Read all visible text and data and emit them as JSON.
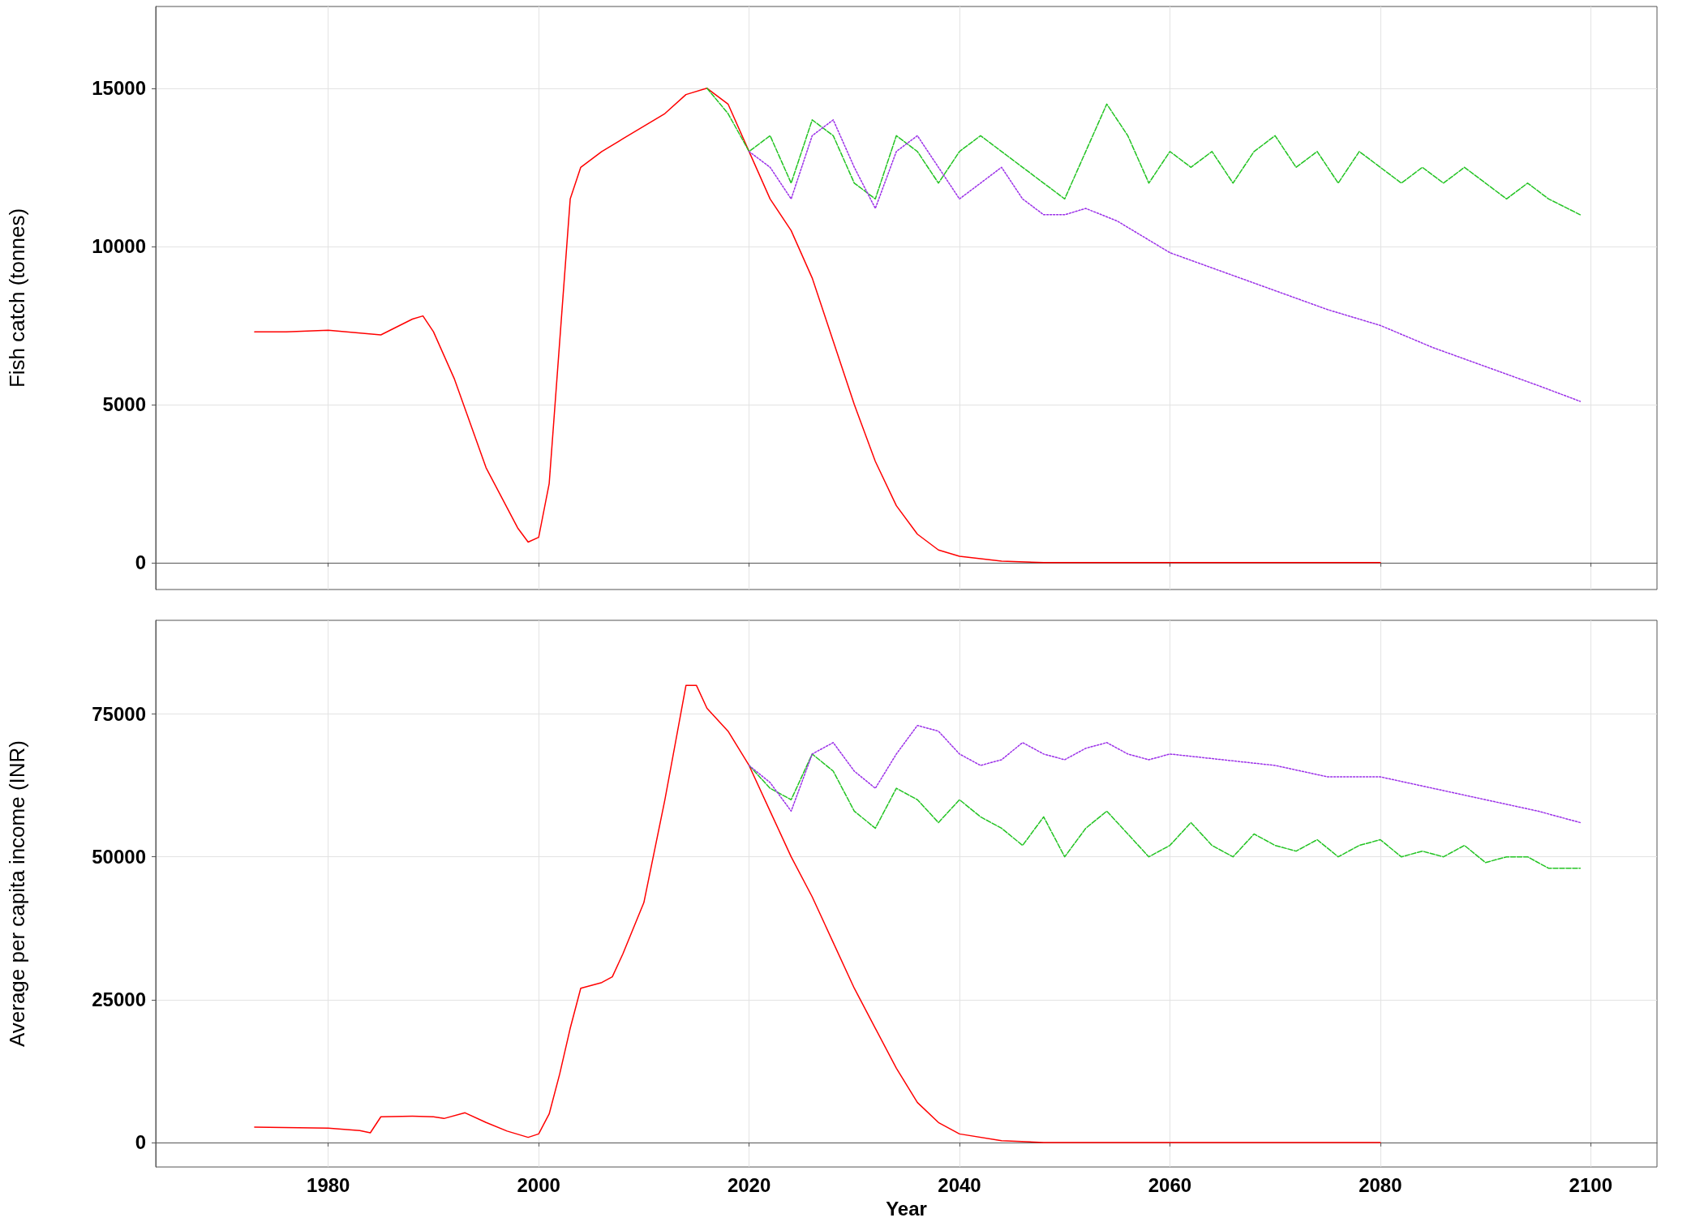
{
  "chart_data": [
    {
      "type": "line",
      "ylabel": "Fish catch (tonnes)",
      "xlim": [
        1963.6,
        2106.3
      ],
      "xticks": [
        1980,
        2000,
        2020,
        2040,
        2060,
        2080,
        2100
      ],
      "ylim": [
        -850,
        17585
      ],
      "yticks": [
        0,
        5000,
        10000,
        15000
      ],
      "grid": true,
      "tick_labels": "y",
      "series": [
        {
          "color": "#ff0000",
          "line_style": "solid",
          "x": [
            1973,
            1976,
            1980,
            1985,
            1988,
            1989,
            1990,
            1992,
            1995,
            1998,
            1999,
            2000,
            2001,
            2002,
            2003,
            2004,
            2006,
            2008,
            2010,
            2012,
            2014,
            2016,
            2018,
            2020,
            2022,
            2024,
            2026,
            2028,
            2030,
            2032,
            2034,
            2036,
            2038,
            2040,
            2044,
            2048,
            2060,
            2080
          ],
          "values": [
            7300,
            7300,
            7350,
            7200,
            7700,
            7800,
            7300,
            5800,
            3000,
            1100,
            650,
            800,
            2500,
            7000,
            11500,
            12500,
            13000,
            13400,
            13800,
            14200,
            14800,
            15000,
            14500,
            13000,
            11500,
            10500,
            9000,
            7000,
            5000,
            3200,
            1800,
            900,
            400,
            200,
            50,
            0,
            0,
            0
          ]
        },
        {
          "color": "#22c322",
          "line_style": "dashed",
          "x": [
            2016,
            2018,
            2020,
            2022,
            2024,
            2026,
            2028,
            2030,
            2032,
            2034,
            2036,
            2038,
            2040,
            2042,
            2044,
            2046,
            2048,
            2050,
            2052,
            2054,
            2056,
            2058,
            2060,
            2062,
            2064,
            2066,
            2068,
            2070,
            2072,
            2074,
            2076,
            2078,
            2080,
            2082,
            2084,
            2086,
            2088,
            2090,
            2092,
            2094,
            2096,
            2099
          ],
          "values": [
            15000,
            14200,
            13000,
            13500,
            12000,
            14000,
            13500,
            12000,
            11500,
            13500,
            13000,
            12000,
            13000,
            13500,
            13000,
            12500,
            12000,
            11500,
            13000,
            14500,
            13500,
            12000,
            13000,
            12500,
            13000,
            12000,
            13000,
            13500,
            12500,
            13000,
            12000,
            13000,
            12500,
            12000,
            12500,
            12000,
            12500,
            12000,
            11500,
            12000,
            11500,
            11000
          ]
        },
        {
          "color": "#9b30e8",
          "line_style": "dotted",
          "x": [
            2020,
            2022,
            2024,
            2026,
            2028,
            2030,
            2032,
            2034,
            2036,
            2038,
            2040,
            2042,
            2044,
            2046,
            2048,
            2050,
            2052,
            2055,
            2060,
            2065,
            2070,
            2075,
            2080,
            2085,
            2090,
            2095,
            2099
          ],
          "values": [
            13000,
            12500,
            11500,
            13500,
            14000,
            12500,
            11200,
            13000,
            13500,
            12500,
            11500,
            12000,
            12500,
            11500,
            11000,
            11000,
            11200,
            10800,
            9800,
            9200,
            8600,
            8000,
            7500,
            6800,
            6200,
            5600,
            5100
          ]
        }
      ]
    },
    {
      "type": "line",
      "xlabel": "Year",
      "ylabel": "Average per capita income (INR)",
      "xlim": [
        1963.6,
        2106.3
      ],
      "xticks": [
        1980,
        2000,
        2020,
        2040,
        2060,
        2080,
        2100
      ],
      "ylim": [
        -4280,
        91400
      ],
      "yticks": [
        0,
        25000,
        50000,
        75000
      ],
      "grid": true,
      "series": [
        {
          "color": "#ff0000",
          "line_style": "solid",
          "x": [
            1973,
            1980,
            1983,
            1984,
            1985,
            1988,
            1990,
            1991,
            1993,
            1995,
            1997,
            1999,
            2000,
            2001,
            2002,
            2003,
            2004,
            2006,
            2007,
            2008,
            2010,
            2012,
            2013,
            2014,
            2015,
            2016,
            2018,
            2020,
            2022,
            2024,
            2026,
            2028,
            2030,
            2032,
            2034,
            2036,
            2038,
            2040,
            2044,
            2048,
            2080
          ],
          "values": [
            2700,
            2500,
            2100,
            1700,
            4500,
            4600,
            4500,
            4200,
            5200,
            3500,
            2000,
            900,
            1500,
            5000,
            12000,
            20000,
            27000,
            28000,
            29000,
            33000,
            42000,
            60000,
            70000,
            80000,
            80000,
            76000,
            72000,
            66000,
            58000,
            50000,
            43000,
            35000,
            27000,
            20000,
            13000,
            7000,
            3500,
            1500,
            300,
            0,
            0
          ]
        },
        {
          "color": "#22c322",
          "line_style": "dashed",
          "x": [
            2020,
            2022,
            2024,
            2026,
            2028,
            2030,
            2032,
            2034,
            2036,
            2038,
            2040,
            2042,
            2044,
            2046,
            2048,
            2050,
            2052,
            2054,
            2056,
            2058,
            2060,
            2062,
            2064,
            2066,
            2068,
            2070,
            2072,
            2074,
            2076,
            2078,
            2080,
            2082,
            2084,
            2086,
            2088,
            2090,
            2092,
            2094,
            2096,
            2099
          ],
          "values": [
            66000,
            62000,
            60000,
            68000,
            65000,
            58000,
            55000,
            62000,
            60000,
            56000,
            60000,
            57000,
            55000,
            52000,
            57000,
            50000,
            55000,
            58000,
            54000,
            50000,
            52000,
            56000,
            52000,
            50000,
            54000,
            52000,
            51000,
            53000,
            50000,
            52000,
            53000,
            50000,
            51000,
            50000,
            52000,
            49000,
            50000,
            50000,
            48000,
            48000
          ]
        },
        {
          "color": "#9b30e8",
          "line_style": "dotted",
          "x": [
            2020,
            2022,
            2024,
            2026,
            2028,
            2030,
            2032,
            2034,
            2036,
            2038,
            2040,
            2042,
            2044,
            2046,
            2048,
            2050,
            2052,
            2054,
            2056,
            2058,
            2060,
            2065,
            2070,
            2075,
            2080,
            2085,
            2090,
            2095,
            2099
          ],
          "values": [
            66000,
            63000,
            58000,
            68000,
            70000,
            65000,
            62000,
            68000,
            73000,
            72000,
            68000,
            66000,
            67000,
            70000,
            68000,
            67000,
            69000,
            70000,
            68000,
            67000,
            68000,
            67000,
            66000,
            64000,
            64000,
            62000,
            60000,
            58000,
            56000
          ]
        }
      ]
    }
  ]
}
